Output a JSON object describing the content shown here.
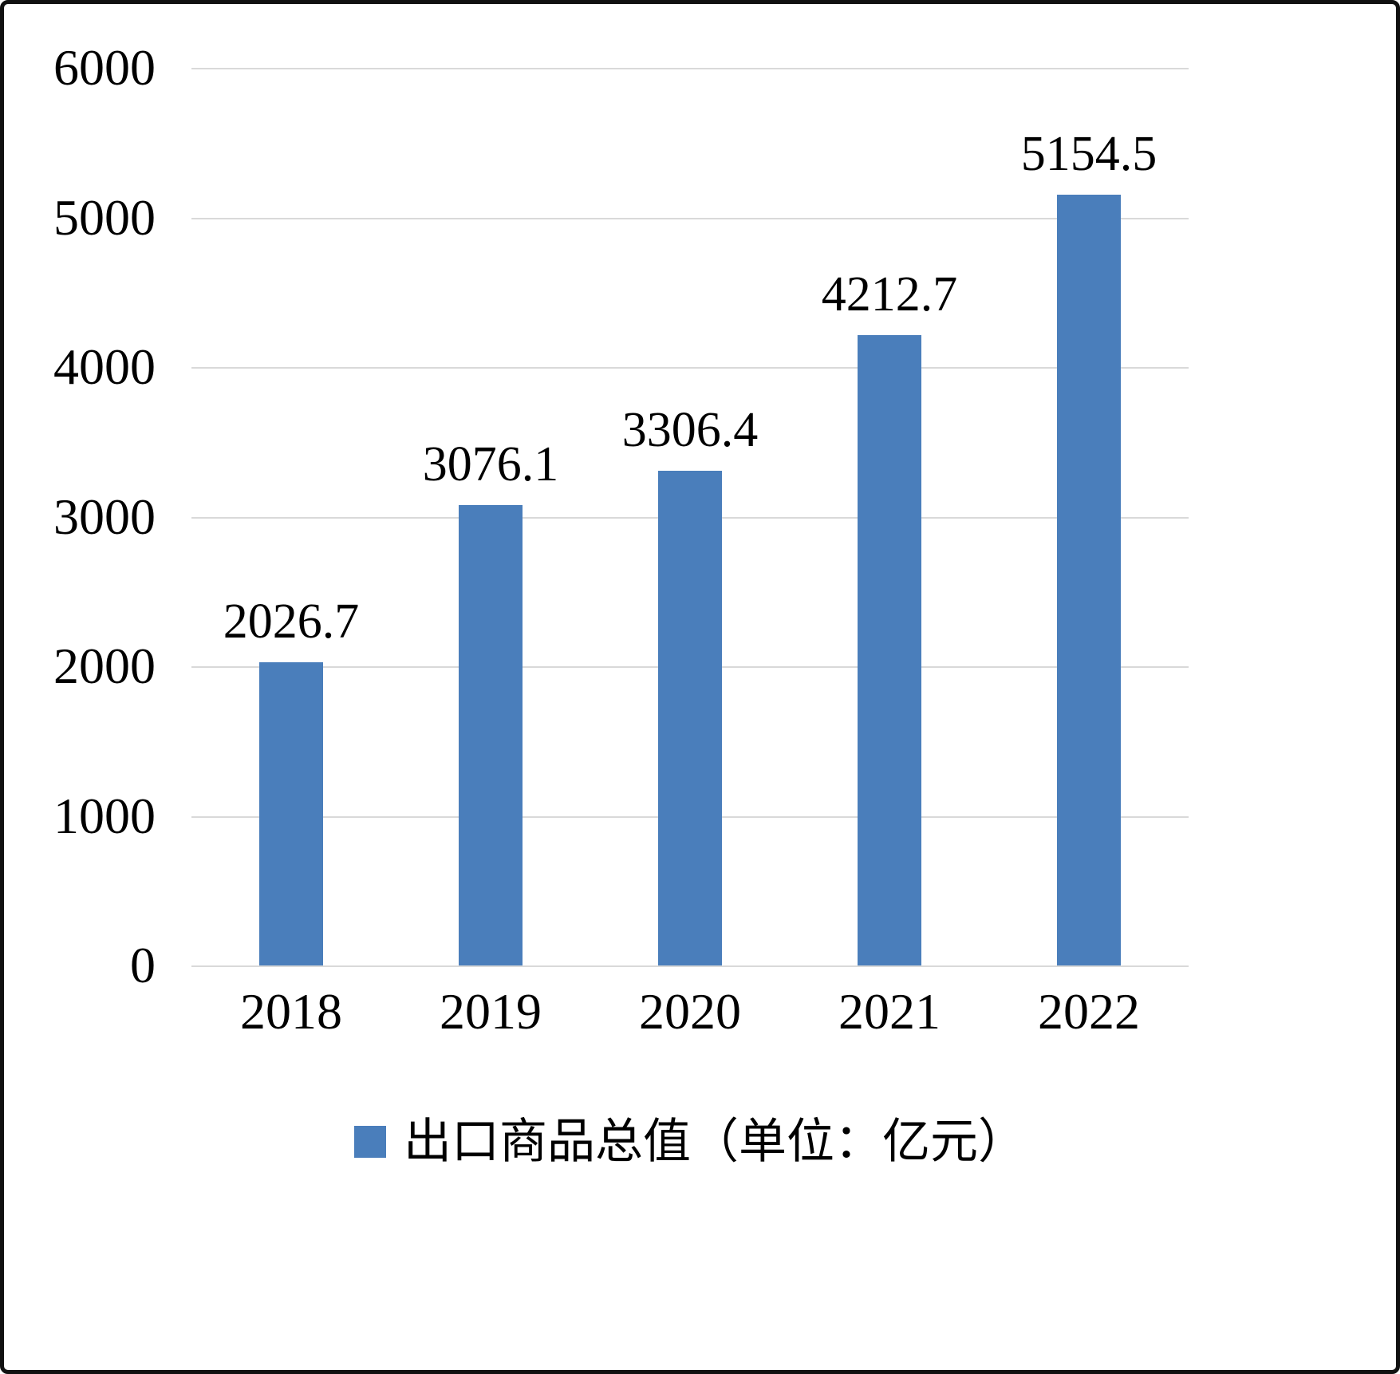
{
  "chart_data": {
    "type": "bar",
    "categories": [
      "2018",
      "2019",
      "2020",
      "2021",
      "2022"
    ],
    "values": [
      2026.7,
      3076.1,
      3306.4,
      4212.7,
      5154.5
    ],
    "title": "",
    "xlabel": "",
    "ylabel": "",
    "ylim": [
      0,
      6000
    ],
    "yticks": [
      0,
      1000,
      2000,
      3000,
      4000,
      5000,
      6000
    ],
    "grid": true,
    "legend": "出口商品总值（单位：亿元）",
    "legend_position": "bottom",
    "bar_color": "#4a7ebb",
    "gridline_color": "#d9d9d9",
    "text_color": "#000000"
  }
}
